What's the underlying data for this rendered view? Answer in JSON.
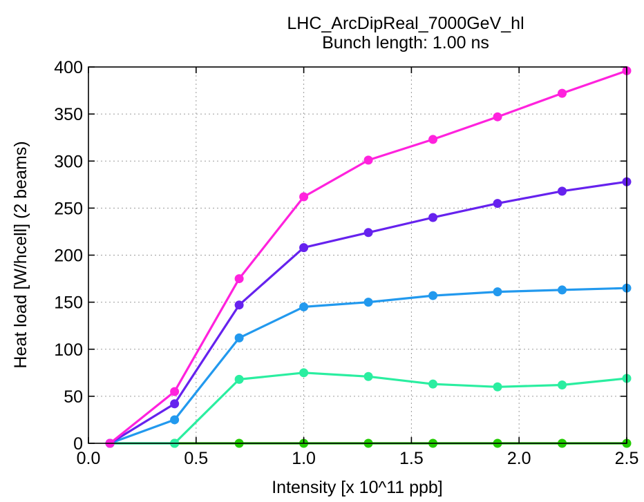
{
  "chart_data": {
    "type": "line",
    "title": "LHC_ArcDipReal_7000GeV_hl",
    "subtitle": "Bunch length: 1.00 ns",
    "xlabel": "Intensity [x 10^11 ppb]",
    "ylabel": "Heat load [W/hcell] (2 beams)",
    "xlim": [
      0.0,
      2.5
    ],
    "ylim": [
      0,
      400
    ],
    "xticks": [
      "0.0",
      "0.5",
      "1.0",
      "1.5",
      "2.0",
      "2.5"
    ],
    "yticks": [
      "0",
      "50",
      "100",
      "150",
      "200",
      "250",
      "300",
      "350",
      "400"
    ],
    "grid": true,
    "x": [
      0.1,
      0.4,
      0.7,
      1.0,
      1.3,
      1.6,
      1.9,
      2.2,
      2.5
    ],
    "series": [
      {
        "color": "#22cc00",
        "values": [
          0,
          0,
          0,
          0,
          0,
          0,
          0,
          0,
          0
        ]
      },
      {
        "color": "#2aeea0",
        "values": [
          0,
          0,
          68,
          75,
          71,
          63,
          60,
          62,
          69
        ]
      },
      {
        "color": "#2299ee",
        "values": [
          0,
          25,
          112,
          145,
          150,
          157,
          161,
          163,
          165
        ]
      },
      {
        "color": "#6622ee",
        "values": [
          0,
          42,
          147,
          208,
          224,
          240,
          255,
          268,
          278
        ]
      },
      {
        "color": "#ff22dd",
        "values": [
          0,
          55,
          175,
          262,
          301,
          323,
          347,
          372,
          396
        ]
      }
    ]
  }
}
